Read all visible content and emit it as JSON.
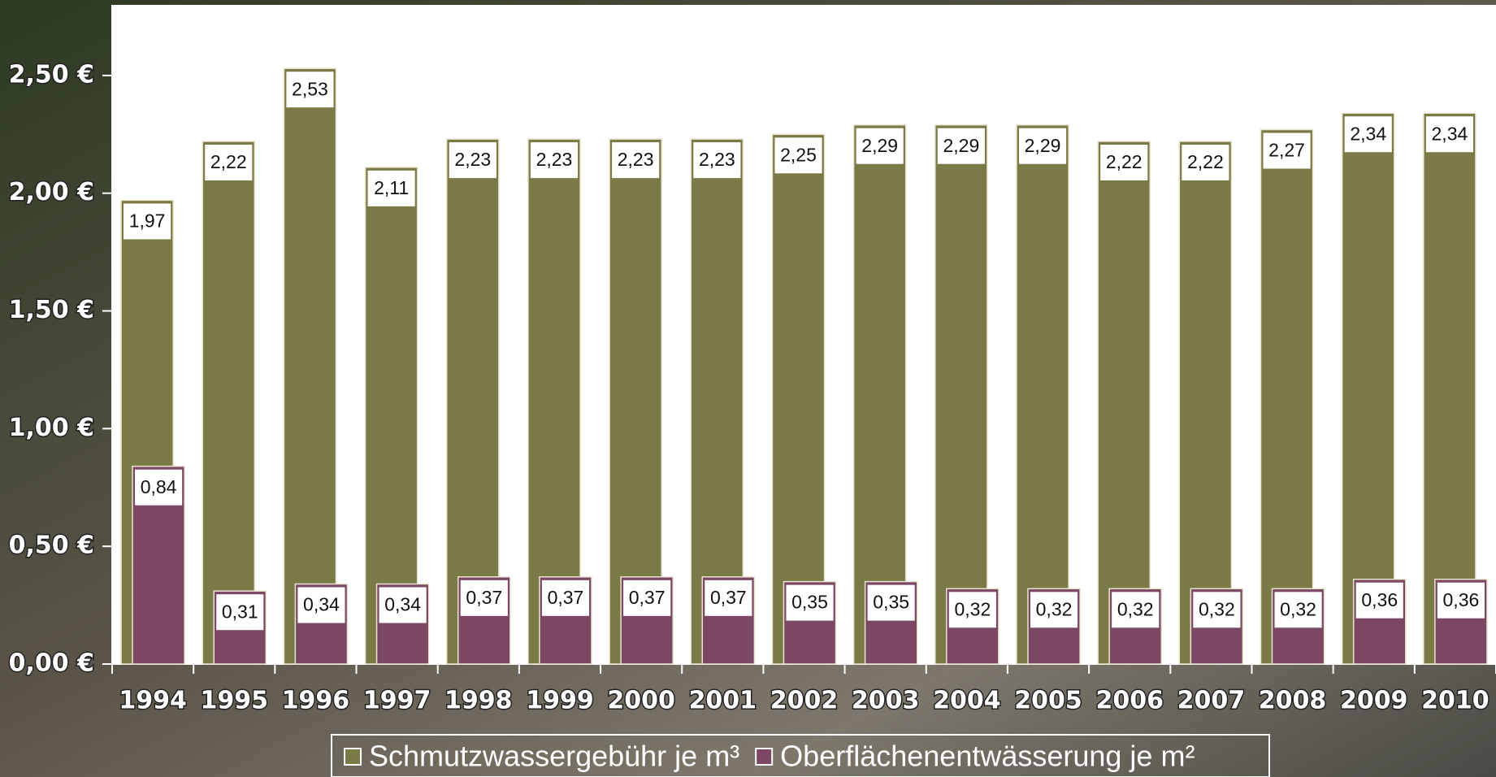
{
  "chart_data": {
    "type": "bar",
    "categories": [
      "1994",
      "1995",
      "1996",
      "1997",
      "1998",
      "1999",
      "2000",
      "2001",
      "2002",
      "2003",
      "2004",
      "2005",
      "2006",
      "2007",
      "2008",
      "2009",
      "2010"
    ],
    "series": [
      {
        "name": "Schmutzwassergebühr je m³",
        "color": "#7a7a46",
        "values": [
          1.97,
          2.22,
          2.53,
          2.11,
          2.23,
          2.23,
          2.23,
          2.23,
          2.25,
          2.29,
          2.29,
          2.29,
          2.22,
          2.22,
          2.27,
          2.34,
          2.34
        ],
        "value_labels": [
          "1,97",
          "2,22",
          "2,53",
          "2,11",
          "2,23",
          "2,23",
          "2,23",
          "2,23",
          "2,25",
          "2,29",
          "2,29",
          "2,29",
          "2,22",
          "2,22",
          "2,27",
          "2,34",
          "2,34"
        ]
      },
      {
        "name": "Oberflächenentwässerung je m²",
        "color": "#7b4762",
        "values": [
          0.84,
          0.31,
          0.34,
          0.34,
          0.37,
          0.37,
          0.37,
          0.37,
          0.35,
          0.35,
          0.32,
          0.32,
          0.32,
          0.32,
          0.32,
          0.36,
          0.36
        ],
        "value_labels": [
          "0,84",
          "0,31",
          "0,34",
          "0,34",
          "0,37",
          "0,37",
          "0,37",
          "0,37",
          "0,35",
          "0,35",
          "0,32",
          "0,32",
          "0,32",
          "0,32",
          "0,32",
          "0,36",
          "0,36"
        ]
      }
    ],
    "ylim": [
      0,
      2.8
    ],
    "yticks": [
      {
        "value": 0,
        "label": "0,00 €"
      },
      {
        "value": 0.5,
        "label": "0,50 €"
      },
      {
        "value": 1,
        "label": "1,00 €"
      },
      {
        "value": 1.5,
        "label": "1,50 €"
      },
      {
        "value": 2,
        "label": "2,00 €"
      },
      {
        "value": 2.5,
        "label": "2,50 €"
      }
    ],
    "legend": "bottom"
  }
}
